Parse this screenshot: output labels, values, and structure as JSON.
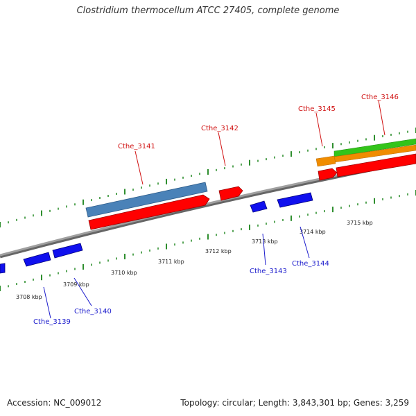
{
  "title": "Clostridium thermocellum ATCC 27405, complete genome",
  "footer": {
    "accession": "Accession: NC_009012",
    "summary": "Topology: circular; Length: 3,843,301 bp; Genes: 3,259"
  },
  "colors": {
    "forward_cds": "#ff0000",
    "reverse_cds": "#1010ee",
    "blue_feature": "#4a82b8",
    "orange_feature": "#f08c00",
    "green_feature": "#33c41a",
    "backbone": "#8a8a8a",
    "ticks": "#2f8f2f",
    "forward_label": "#d01010",
    "reverse_label": "#1a1acc"
  },
  "scale": {
    "unit": "kbp",
    "ticks": [
      "3708 kbp",
      "3709 kbp",
      "3710 kbp",
      "3711 kbp",
      "3712 kbp",
      "3713 kbp",
      "3714 kbp",
      "3715 kbp"
    ]
  },
  "genes_forward": [
    "Cthe_3141",
    "Cthe_3142",
    "Cthe_3145",
    "Cthe_3146"
  ],
  "genes_reverse": [
    "Cthe_3139",
    "Cthe_3140",
    "Cthe_3143",
    "Cthe_3144"
  ]
}
